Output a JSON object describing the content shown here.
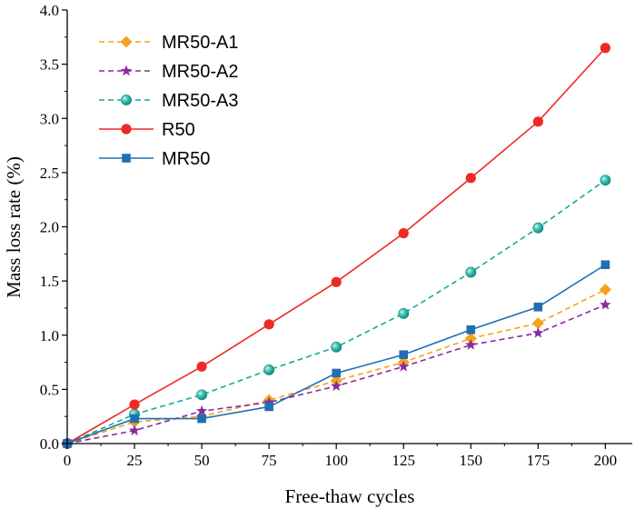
{
  "chart_data": {
    "type": "line",
    "xlabel": "Free-thaw cycles",
    "ylabel": "Mass loss rate (%)",
    "x": [
      0,
      25,
      50,
      75,
      100,
      125,
      150,
      175,
      200
    ],
    "xlim": [
      0,
      210
    ],
    "ylim": [
      0,
      4.0
    ],
    "xticks": [
      0,
      25,
      50,
      75,
      100,
      125,
      150,
      175,
      200
    ],
    "yticks": [
      0.0,
      0.5,
      1.0,
      1.5,
      2.0,
      2.5,
      3.0,
      3.5,
      4.0
    ],
    "xtick_labels": [
      "0",
      "25",
      "50",
      "75",
      "100",
      "125",
      "150",
      "175",
      "200"
    ],
    "ytick_labels": [
      "0.0",
      "0.5",
      "1.0",
      "1.5",
      "2.0",
      "2.5",
      "3.0",
      "3.5",
      "4.0"
    ],
    "grid": false,
    "legend_position": "top-left",
    "series": [
      {
        "name": "MR50-A1",
        "color": "#f5a31a",
        "dashed": true,
        "marker": "diamond",
        "values": [
          0,
          0.2,
          0.25,
          0.4,
          0.58,
          0.75,
          0.97,
          1.11,
          1.42
        ]
      },
      {
        "name": "MR50-A2",
        "color": "#8b2a9c",
        "dashed": true,
        "marker": "star",
        "values": [
          0,
          0.12,
          0.3,
          0.38,
          0.53,
          0.71,
          0.91,
          1.02,
          1.28
        ]
      },
      {
        "name": "MR50-A3",
        "color": "#16a99b",
        "dashed": true,
        "marker": "circle-shaded",
        "values": [
          0,
          0.27,
          0.45,
          0.68,
          0.89,
          1.2,
          1.58,
          1.99,
          2.43
        ]
      },
      {
        "name": "R50",
        "color": "#ee2a24",
        "dashed": false,
        "marker": "circle",
        "values": [
          0,
          0.36,
          0.71,
          1.1,
          1.49,
          1.94,
          2.45,
          2.97,
          3.65
        ]
      },
      {
        "name": "MR50",
        "color": "#1f6fb4",
        "dashed": false,
        "marker": "square",
        "values": [
          0,
          0.23,
          0.23,
          0.34,
          0.65,
          0.82,
          1.05,
          1.26,
          1.65
        ]
      }
    ]
  }
}
